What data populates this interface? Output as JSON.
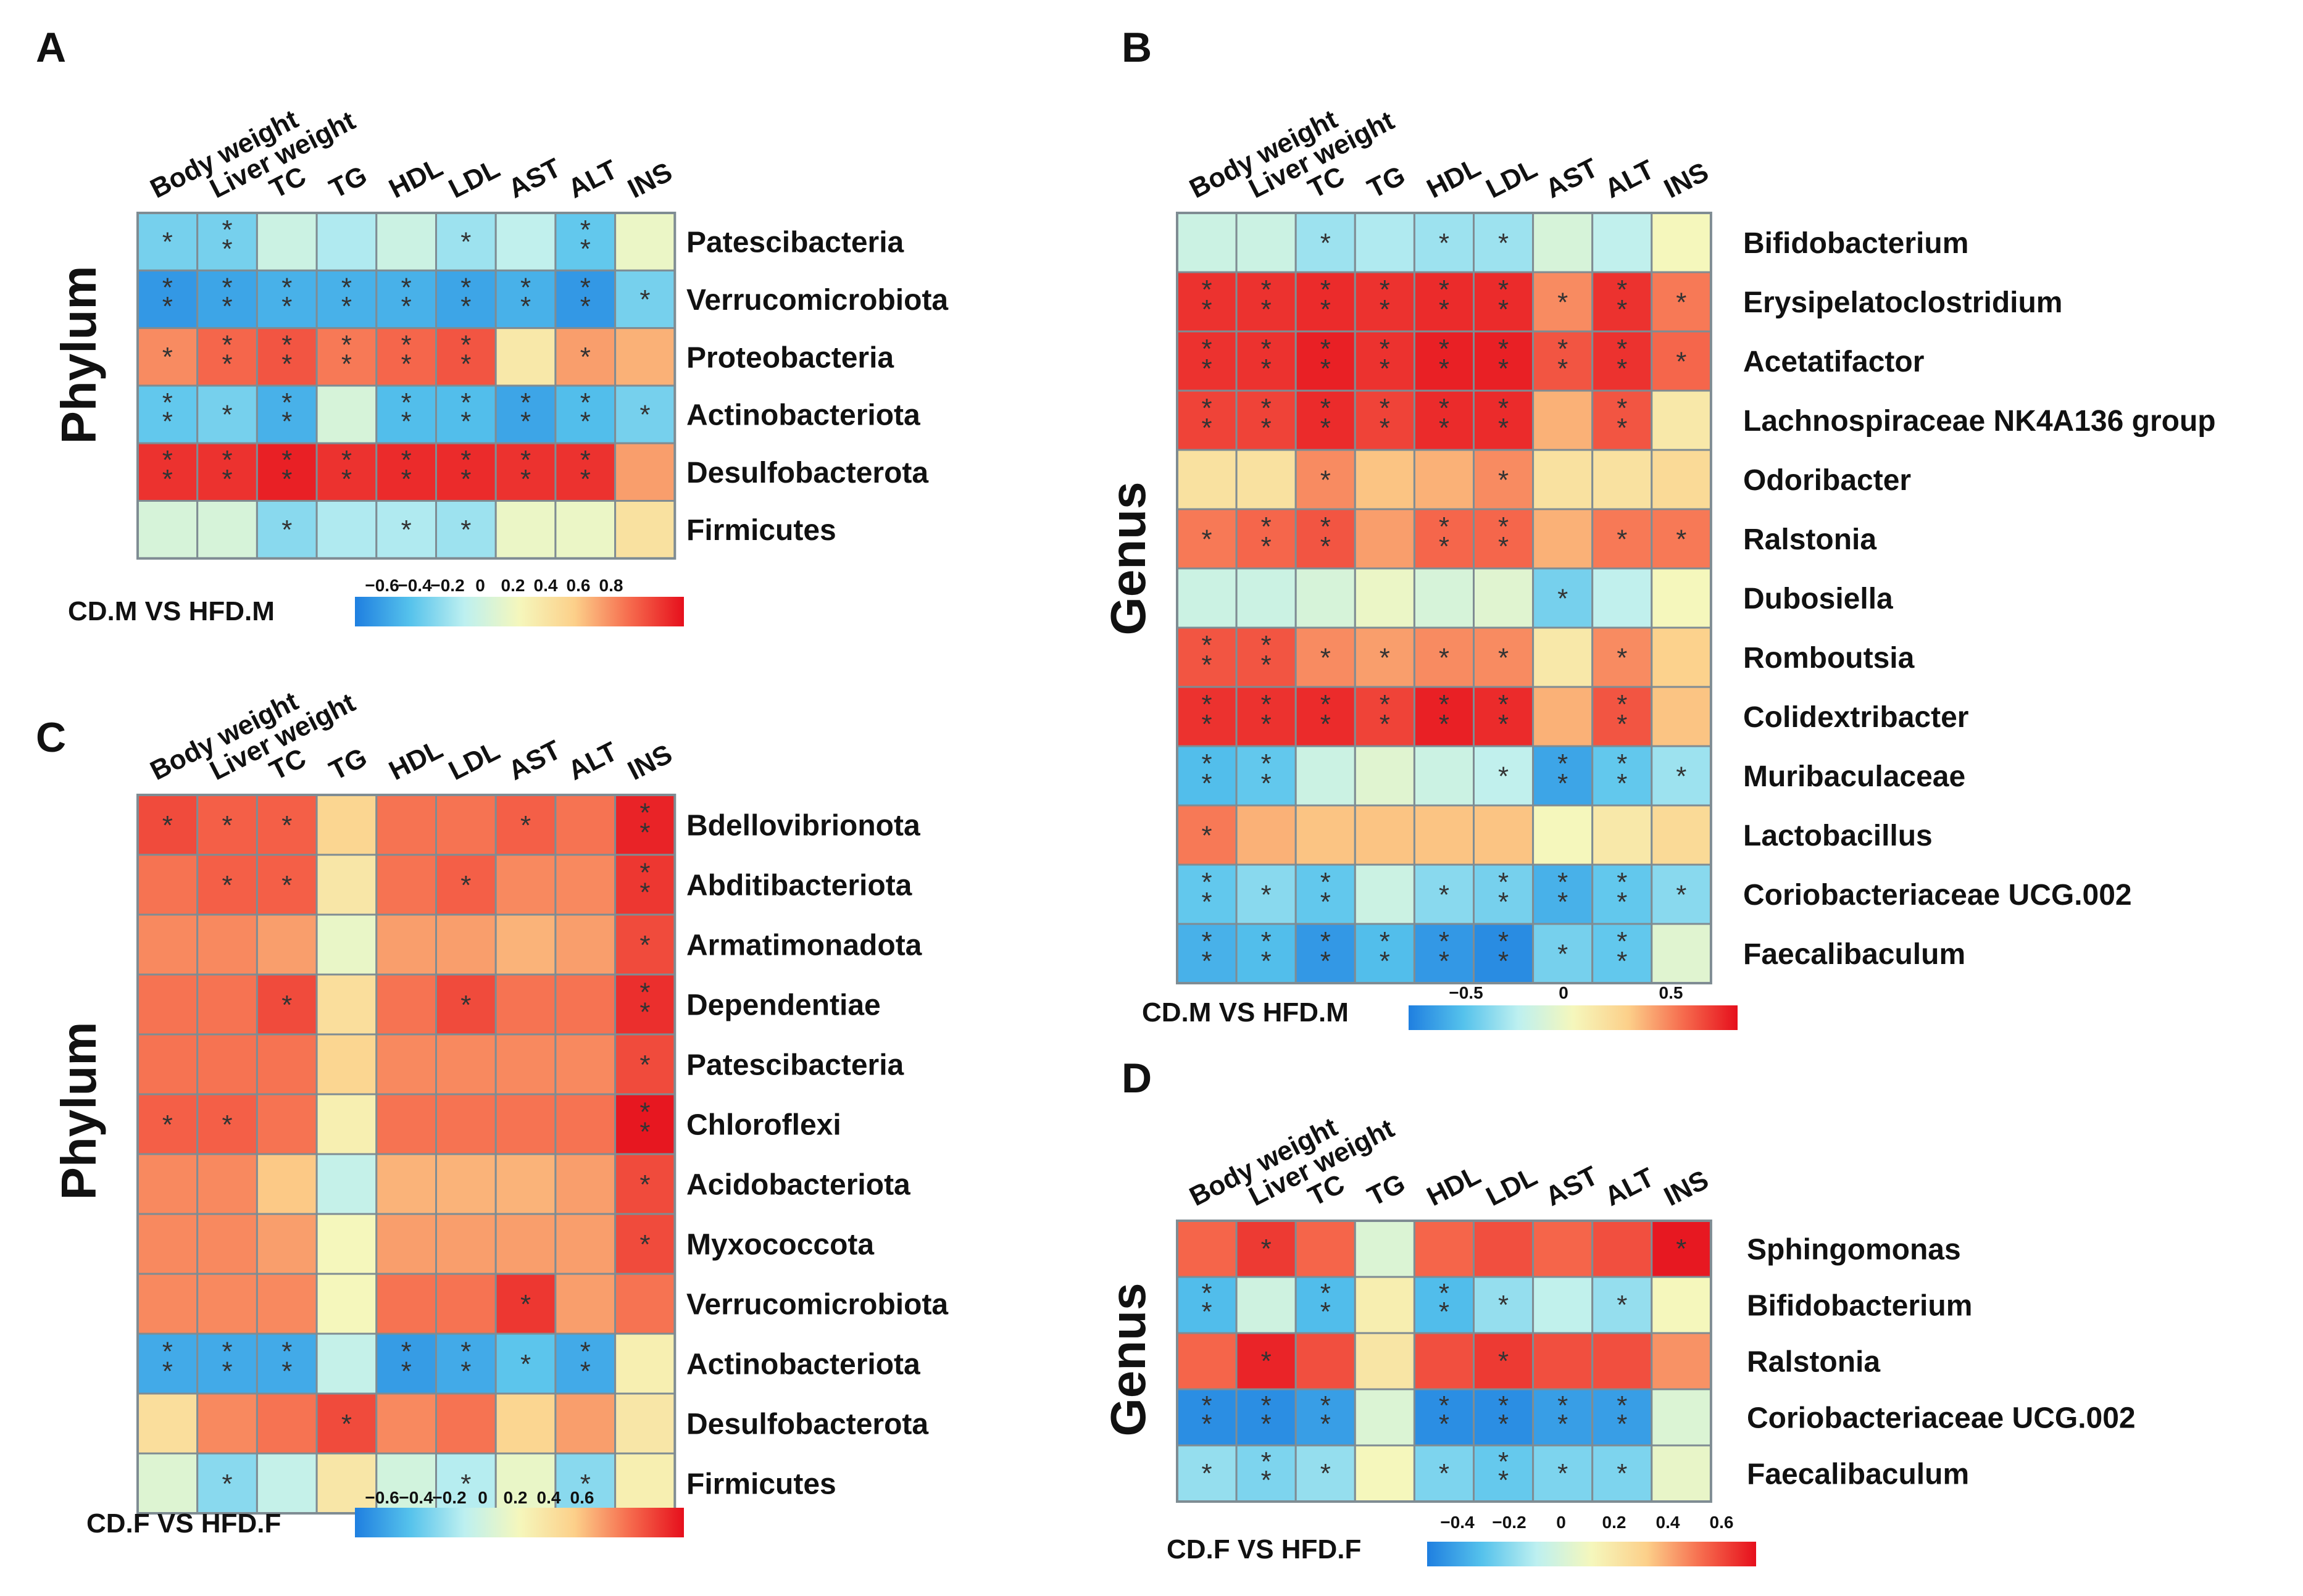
{
  "figure": {
    "columns": [
      "Body weight",
      "Liver weight",
      "TC",
      "TG",
      "HDL",
      "LDL",
      "AST",
      "ALT",
      "INS"
    ],
    "colors": {
      "scale": [
        "#1f7fe0",
        "#55c2ec",
        "#bdf0f0",
        "#f5f7bc",
        "#fcd08a",
        "#f66c4e",
        "#e60f1c"
      ],
      "cell_border": "#7f8c93"
    }
  },
  "chart_data": [
    {
      "id": "A",
      "type": "heatmap",
      "panel_label": "A",
      "y_axis_label": "Phylum",
      "colorbar_title": "CD.M VS HFD.M",
      "colorbar_ticks": [
        "−0.6",
        "−0.4",
        "−0.2",
        "0",
        "0.2",
        "0.4",
        "0.6",
        "0.8"
      ],
      "colorbar_range": [
        -0.8,
        0.8
      ],
      "columns": [
        "Body weight",
        "Liver weight",
        "TC",
        "TG",
        "HDL",
        "LDL",
        "AST",
        "ALT",
        "INS"
      ],
      "rows": [
        "Patescibacteria",
        "Verrucomicrobiota",
        "Proteobacteria",
        "Actinobacteriota",
        "Desulfobacterota",
        "Firmicutes"
      ],
      "values": [
        [
          -0.45,
          -0.45,
          -0.2,
          -0.3,
          -0.2,
          -0.35,
          -0.25,
          -0.5,
          -0.05
        ],
        [
          -0.7,
          -0.65,
          -0.6,
          -0.6,
          -0.6,
          -0.65,
          -0.6,
          -0.7,
          -0.45
        ],
        [
          0.45,
          0.55,
          0.6,
          0.5,
          0.55,
          0.6,
          0.1,
          0.4,
          0.35
        ],
        [
          -0.5,
          -0.45,
          -0.6,
          -0.15,
          -0.55,
          -0.55,
          -0.65,
          -0.55,
          -0.45
        ],
        [
          0.7,
          0.7,
          0.75,
          0.7,
          0.72,
          0.72,
          0.7,
          0.7,
          0.4
        ],
        [
          -0.15,
          -0.15,
          -0.4,
          -0.3,
          -0.3,
          -0.35,
          -0.05,
          -0.05,
          0.15
        ]
      ],
      "stars": [
        [
          "*",
          "**",
          "",
          "",
          "",
          "*",
          "",
          "**",
          ""
        ],
        [
          "**",
          "**",
          "**",
          "**",
          "**",
          "**",
          "**",
          "**",
          "*"
        ],
        [
          "*",
          "**",
          "**",
          "**",
          "**",
          "**",
          "",
          "*",
          ""
        ],
        [
          "**",
          "*",
          "**",
          "",
          "**",
          "**",
          "**",
          "**",
          "*"
        ],
        [
          "**",
          "**",
          "**",
          "**",
          "**",
          "**",
          "**",
          "**",
          ""
        ],
        [
          "",
          "",
          "*",
          "",
          "*",
          "*",
          "",
          "",
          ""
        ]
      ]
    },
    {
      "id": "B",
      "type": "heatmap",
      "panel_label": "B",
      "y_axis_label": "Genus",
      "colorbar_title": "CD.M VS HFD.M",
      "colorbar_ticks": [
        "−0.5",
        "0",
        "0.5"
      ],
      "colorbar_range": [
        -0.8,
        0.8
      ],
      "columns": [
        "Body weight",
        "Liver weight",
        "TC",
        "TG",
        "HDL",
        "LDL",
        "AST",
        "ALT",
        "INS"
      ],
      "rows": [
        "Bifidobacterium",
        "Erysipelatoclostridium",
        "Acetatifactor",
        "Lachnospiraceae NK4A136 group",
        "Odoribacter",
        "Ralstonia",
        "Dubosiella",
        "Romboutsia",
        "Colidextribacter",
        "Muribaculaceae",
        "Lactobacillus",
        "Coriobacteriaceae UCG.002",
        "Faecalibaculum"
      ],
      "values": [
        [
          -0.2,
          -0.2,
          -0.35,
          -0.3,
          -0.35,
          -0.35,
          -0.15,
          -0.25,
          0.0
        ],
        [
          0.7,
          0.7,
          0.72,
          0.7,
          0.72,
          0.72,
          0.45,
          0.7,
          0.5
        ],
        [
          0.7,
          0.7,
          0.75,
          0.7,
          0.75,
          0.75,
          0.6,
          0.7,
          0.55
        ],
        [
          0.65,
          0.65,
          0.72,
          0.65,
          0.72,
          0.72,
          0.35,
          0.6,
          0.1
        ],
        [
          0.15,
          0.15,
          0.45,
          0.3,
          0.35,
          0.45,
          0.15,
          0.15,
          0.2
        ],
        [
          0.5,
          0.55,
          0.6,
          0.4,
          0.55,
          0.55,
          0.35,
          0.5,
          0.5
        ],
        [
          -0.2,
          -0.2,
          -0.15,
          -0.05,
          -0.15,
          -0.1,
          -0.45,
          -0.25,
          0.0
        ],
        [
          0.6,
          0.6,
          0.45,
          0.4,
          0.45,
          0.45,
          0.1,
          0.45,
          0.25
        ],
        [
          0.7,
          0.7,
          0.72,
          0.65,
          0.75,
          0.72,
          0.35,
          0.6,
          0.3
        ],
        [
          -0.55,
          -0.5,
          -0.2,
          -0.1,
          -0.2,
          -0.25,
          -0.65,
          -0.5,
          -0.35
        ],
        [
          0.5,
          0.35,
          0.3,
          0.3,
          0.3,
          0.3,
          0.0,
          0.1,
          0.2
        ],
        [
          -0.5,
          -0.4,
          -0.5,
          -0.2,
          -0.4,
          -0.45,
          -0.6,
          -0.5,
          -0.4
        ],
        [
          -0.6,
          -0.55,
          -0.7,
          -0.55,
          -0.7,
          -0.75,
          -0.45,
          -0.5,
          -0.1
        ]
      ],
      "stars": [
        [
          "",
          "",
          "*",
          "",
          "*",
          "*",
          "",
          "",
          ""
        ],
        [
          "**",
          "**",
          "**",
          "**",
          "**",
          "**",
          "*",
          "**",
          "*"
        ],
        [
          "**",
          "**",
          "**",
          "**",
          "**",
          "**",
          "**",
          "**",
          "*"
        ],
        [
          "**",
          "**",
          "**",
          "**",
          "**",
          "**",
          "",
          "**",
          ""
        ],
        [
          "",
          "",
          "*",
          "",
          "",
          "*",
          "",
          "",
          ""
        ],
        [
          "*",
          "**",
          "**",
          "",
          "**",
          "**",
          "",
          "*",
          "*"
        ],
        [
          "",
          "",
          "",
          "",
          "",
          "",
          "*",
          "",
          ""
        ],
        [
          "**",
          "**",
          "*",
          "*",
          "*",
          "*",
          "",
          "*",
          ""
        ],
        [
          "**",
          "**",
          "**",
          "**",
          "**",
          "**",
          "",
          "**",
          ""
        ],
        [
          "**",
          "**",
          "",
          "",
          "",
          "*",
          "**",
          "**",
          "*"
        ],
        [
          "*",
          "",
          "",
          "",
          "",
          "",
          "",
          "",
          ""
        ],
        [
          "**",
          "*",
          "**",
          "",
          "*",
          "**",
          "**",
          "**",
          "*"
        ],
        [
          "**",
          "**",
          "**",
          "**",
          "**",
          "**",
          "*",
          "**",
          ""
        ]
      ]
    },
    {
      "id": "C",
      "type": "heatmap",
      "panel_label": "C",
      "y_axis_label": "Phylum",
      "colorbar_title": "CD.F VS HFD.F",
      "colorbar_ticks": [
        "−0.6",
        "−0.4",
        "−0.2",
        "0",
        "0.2",
        "0.4",
        "0.6"
      ],
      "colorbar_range": [
        -0.7,
        0.7
      ],
      "columns": [
        "Body weight",
        "Liver weight",
        "TC",
        "TG",
        "HDL",
        "LDL",
        "AST",
        "ALT",
        "INS"
      ],
      "rows": [
        "Bdellovibrionota",
        "Abditibacteriota",
        "Armatimonadota",
        "Dependentiae",
        "Patescibacteria",
        "Chloroflexi",
        "Acidobacteriota",
        "Myxococcota",
        "Verrucomicrobiota",
        "Actinobacteriota",
        "Desulfobacterota",
        "Firmicutes"
      ],
      "values": [
        [
          0.55,
          0.5,
          0.5,
          0.2,
          0.45,
          0.45,
          0.5,
          0.45,
          0.65
        ],
        [
          0.45,
          0.5,
          0.5,
          0.1,
          0.45,
          0.5,
          0.4,
          0.4,
          0.6
        ],
        [
          0.4,
          0.4,
          0.35,
          -0.05,
          0.35,
          0.35,
          0.3,
          0.35,
          0.55
        ],
        [
          0.45,
          0.45,
          0.55,
          0.15,
          0.45,
          0.55,
          0.45,
          0.45,
          0.62
        ],
        [
          0.45,
          0.45,
          0.45,
          0.2,
          0.4,
          0.4,
          0.4,
          0.4,
          0.55
        ],
        [
          0.5,
          0.5,
          0.45,
          0.05,
          0.45,
          0.45,
          0.45,
          0.45,
          0.68
        ],
        [
          0.4,
          0.4,
          0.25,
          -0.2,
          0.3,
          0.3,
          0.3,
          0.35,
          0.55
        ],
        [
          0.4,
          0.4,
          0.35,
          0.0,
          0.35,
          0.35,
          0.35,
          0.35,
          0.55
        ],
        [
          0.4,
          0.4,
          0.4,
          0.0,
          0.45,
          0.45,
          0.6,
          0.35,
          0.45
        ],
        [
          -0.55,
          -0.55,
          -0.55,
          -0.2,
          -0.6,
          -0.55,
          -0.45,
          -0.55,
          0.05
        ],
        [
          0.15,
          0.4,
          0.45,
          0.55,
          0.4,
          0.45,
          0.2,
          0.35,
          0.1
        ],
        [
          -0.1,
          -0.35,
          -0.2,
          0.1,
          -0.15,
          -0.25,
          -0.05,
          -0.35,
          0.05
        ]
      ],
      "stars": [
        [
          "*",
          "*",
          "*",
          "",
          "",
          "",
          "*",
          "",
          "**"
        ],
        [
          "",
          "*",
          "*",
          "",
          "",
          "*",
          "",
          "",
          "**"
        ],
        [
          "",
          "",
          "",
          "",
          "",
          "",
          "",
          "",
          "*"
        ],
        [
          "",
          "",
          "*",
          "",
          "",
          "*",
          "",
          "",
          "**"
        ],
        [
          "",
          "",
          "",
          "",
          "",
          "",
          "",
          "",
          "*"
        ],
        [
          "*",
          "*",
          "",
          "",
          "",
          "",
          "",
          "",
          "**"
        ],
        [
          "",
          "",
          "",
          "",
          "",
          "",
          "",
          "",
          "*"
        ],
        [
          "",
          "",
          "",
          "",
          "",
          "",
          "",
          "",
          "*"
        ],
        [
          "",
          "",
          "",
          "",
          "",
          "",
          "*",
          "",
          ""
        ],
        [
          "**",
          "**",
          "**",
          "",
          "**",
          "**",
          "*",
          "**",
          ""
        ],
        [
          "",
          "",
          "",
          "*",
          "",
          "",
          "",
          "",
          ""
        ],
        [
          "",
          "*",
          "",
          "",
          "",
          "*",
          "",
          "*",
          ""
        ]
      ]
    },
    {
      "id": "D",
      "type": "heatmap",
      "panel_label": "D",
      "y_axis_label": "Genus",
      "colorbar_title": "CD.F VS HFD.F",
      "colorbar_ticks": [
        "−0.4",
        "−0.2",
        "0",
        "0.2",
        "0.4",
        "0.6"
      ],
      "colorbar_range": [
        -0.6,
        0.7
      ],
      "columns": [
        "Body weight",
        "Liver weight",
        "TC",
        "TG",
        "HDL",
        "LDL",
        "AST",
        "ALT",
        "INS"
      ],
      "rows": [
        "Sphingomonas",
        "Bifidobacterium",
        "Ralstonia",
        "Coriobacteriaceae UCG.002",
        "Faecalibaculum"
      ],
      "values": [
        [
          0.5,
          0.6,
          0.5,
          -0.05,
          0.5,
          0.55,
          0.5,
          0.55,
          0.68
        ],
        [
          -0.4,
          -0.1,
          -0.4,
          0.1,
          -0.4,
          -0.25,
          -0.15,
          -0.25,
          0.05
        ],
        [
          0.5,
          0.65,
          0.55,
          0.15,
          0.55,
          0.6,
          0.55,
          0.55,
          0.4
        ],
        [
          -0.55,
          -0.55,
          -0.5,
          -0.05,
          -0.55,
          -0.55,
          -0.5,
          -0.5,
          -0.05
        ],
        [
          -0.25,
          -0.3,
          -0.25,
          0.05,
          -0.3,
          -0.35,
          -0.3,
          -0.3,
          0.0
        ]
      ],
      "stars": [
        [
          "",
          "*",
          "",
          "",
          "",
          "",
          "",
          "",
          "*"
        ],
        [
          "**",
          "",
          "**",
          "",
          "**",
          "*",
          "",
          "*",
          ""
        ],
        [
          "",
          "*",
          "",
          "",
          "",
          "*",
          "",
          "",
          ""
        ],
        [
          "**",
          "**",
          "**",
          "",
          "**",
          "**",
          "**",
          "**",
          ""
        ],
        [
          "*",
          "**",
          "*",
          "",
          "*",
          "**",
          "*",
          "*",
          ""
        ]
      ]
    }
  ]
}
